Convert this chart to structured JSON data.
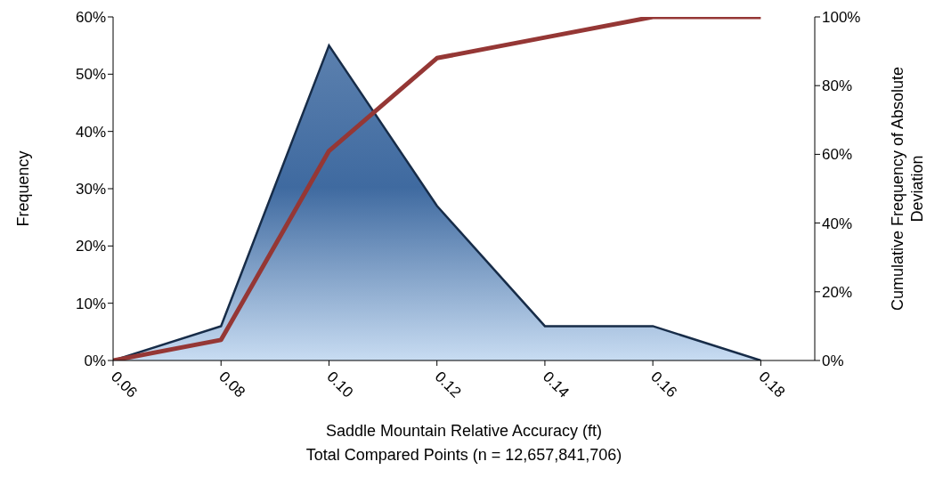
{
  "chart_data": {
    "type": "area",
    "xlabel": "Saddle Mountain Relative Accuracy (ft)",
    "ylabel": "Frequency",
    "y2label": "Cumulative Frequency of Absolute Deviation",
    "annotations": [
      "Total Compared Points (n = 12,657,841,706)"
    ],
    "x": [
      0.06,
      0.08,
      0.1,
      0.12,
      0.14,
      0.16,
      0.18
    ],
    "series": [
      {
        "color": "#3f6aa0",
        "values": [
          0,
          6,
          55,
          27,
          6,
          6,
          0
        ]
      },
      {
        "type": "line",
        "axis": "y2",
        "color": "#953735",
        "values": [
          0,
          6,
          61,
          88,
          94,
          100,
          100
        ]
      }
    ],
    "xlim": [
      0.06,
      0.19
    ],
    "xticks": [
      {
        "value": 0.06,
        "label": "0.06"
      },
      {
        "value": 0.08,
        "label": "0.08"
      },
      {
        "value": 0.1,
        "label": "0.10"
      },
      {
        "value": 0.12,
        "label": "0.12"
      },
      {
        "value": 0.14,
        "label": "0.14"
      },
      {
        "value": 0.16,
        "label": "0.16"
      },
      {
        "value": 0.18,
        "label": "0.18"
      }
    ],
    "ylim": [
      0,
      60
    ],
    "yticks": [
      {
        "value": 0,
        "label": "0%"
      },
      {
        "value": 10,
        "label": "10%"
      },
      {
        "value": 20,
        "label": "20%"
      },
      {
        "value": 30,
        "label": "30%"
      },
      {
        "value": 40,
        "label": "40%"
      },
      {
        "value": 50,
        "label": "50%"
      },
      {
        "value": 60,
        "label": "60%"
      }
    ],
    "y2lim": [
      0,
      100
    ],
    "y2ticks": [
      {
        "value": 0,
        "label": "0%"
      },
      {
        "value": 20,
        "label": "20%"
      },
      {
        "value": 40,
        "label": "40%"
      },
      {
        "value": 60,
        "label": "60%"
      },
      {
        "value": 80,
        "label": "80%"
      },
      {
        "value": 100,
        "label": "100%"
      }
    ],
    "grid": false,
    "legend": false,
    "marker": "none",
    "line_style": "solid"
  }
}
